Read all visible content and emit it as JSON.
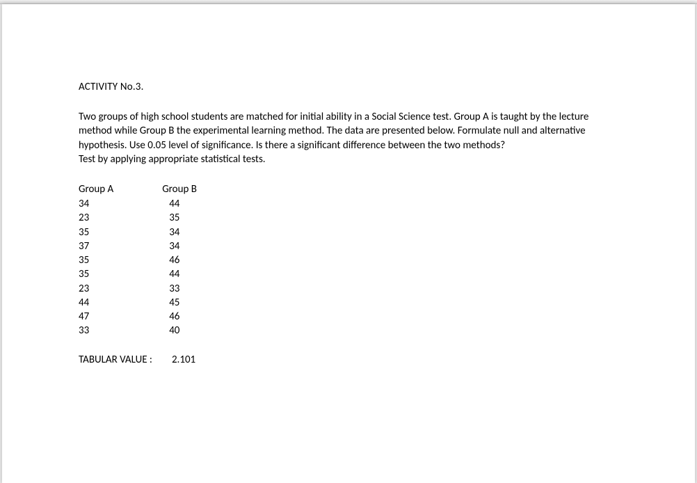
{
  "heading": "ACTIVITY No.3.",
  "paragraph": "Two groups of high school students are  matched for initial ability in a Social Science test. Group A is taught by the lecture method while Group B the experimental learning method. The data are presented below. Formulate null and alternative hypothesis. Use 0.05 level of significance. Is there a significant difference between the two methods?\nTest by applying appropriate statistical tests.",
  "columns": {
    "a": {
      "header": "Group A",
      "values": [
        "34",
        "23",
        "35",
        "37",
        "35",
        "35",
        "23",
        "44",
        "47",
        "33"
      ]
    },
    "b": {
      "header": "Group B",
      "values": [
        "44",
        "35",
        "34",
        "34",
        "46",
        "44",
        "33",
        "45",
        "46",
        "40"
      ]
    }
  },
  "tabular": {
    "label": "TABULAR VALUE :",
    "value": "2.101"
  },
  "style": {
    "font_family": "Calibri",
    "font_size_pt": 11,
    "text_color": "#000000",
    "page_background": "#ffffff",
    "outer_background": "#e8e8e8"
  }
}
